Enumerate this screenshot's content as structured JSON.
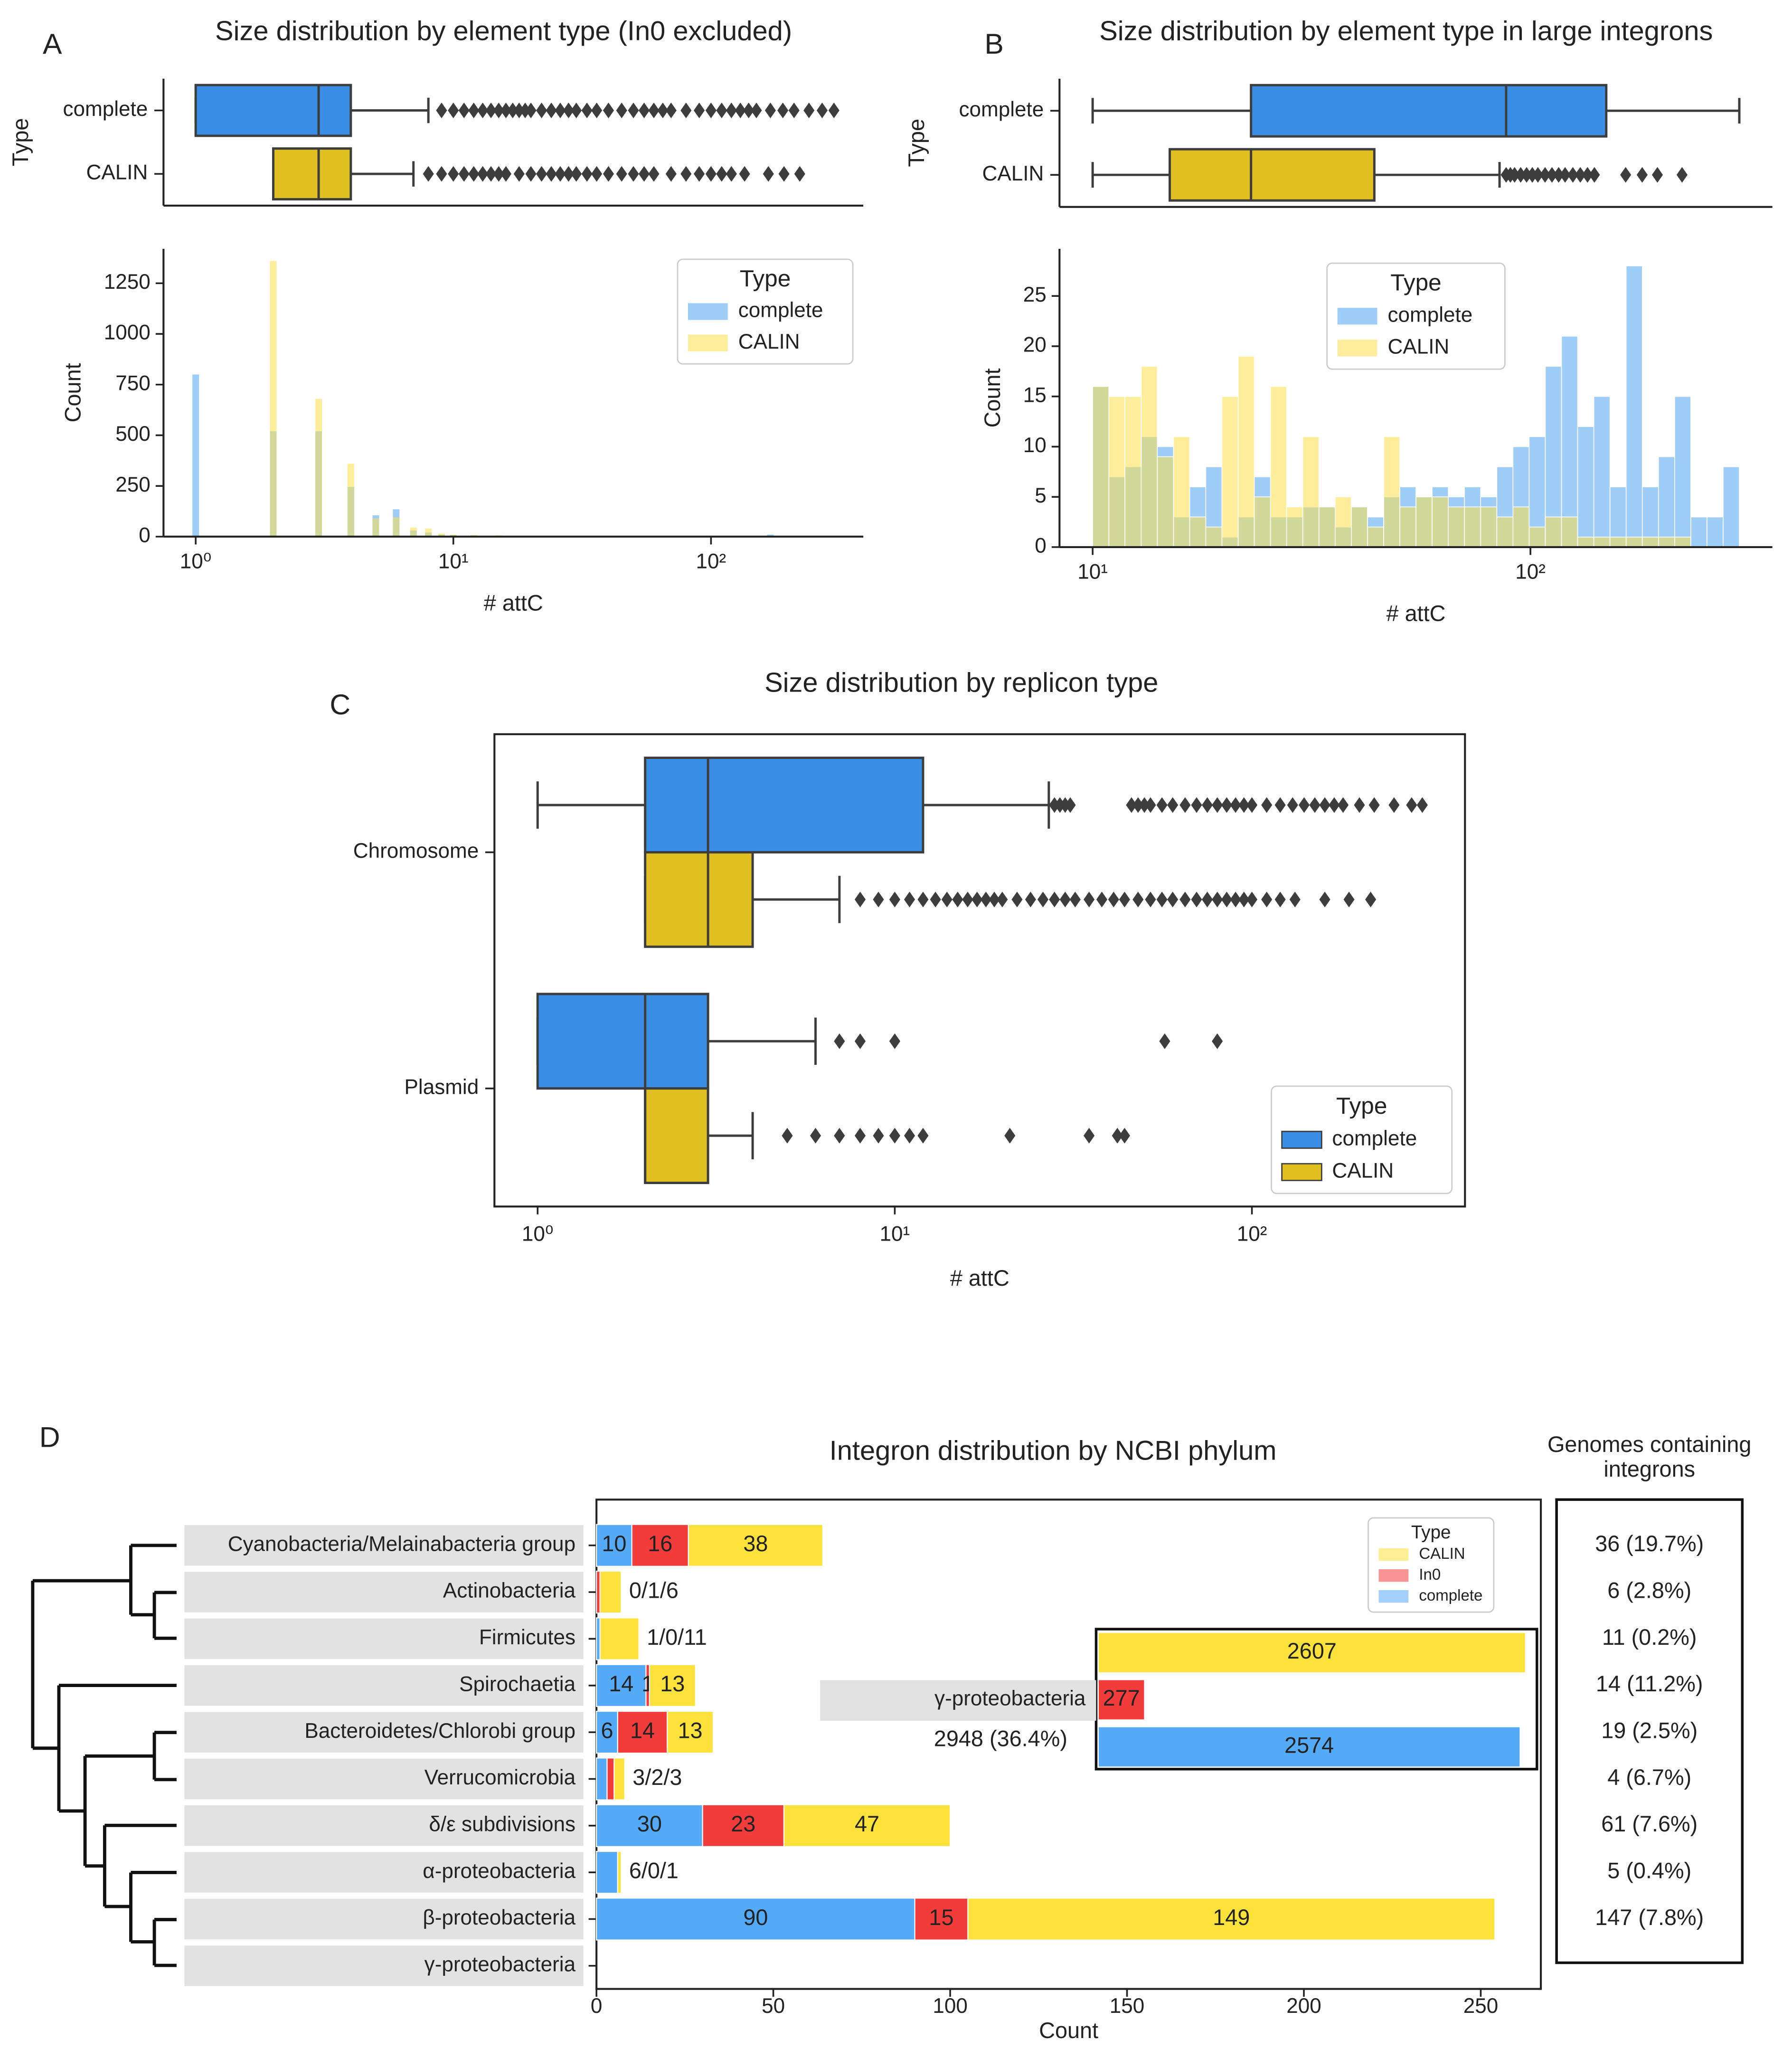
{
  "chart_data": [
    {
      "type": "box",
      "panel": "A",
      "title": "Size distribution by element type (In0 excluded)",
      "ylabel": "Type",
      "xscale": "log",
      "xlim": [
        0.75,
        390
      ],
      "categories": [
        "complete",
        "CALIN"
      ],
      "colors": [
        "#3a8ee6",
        "#e0c020"
      ],
      "boxes": [
        {
          "whislo": 1,
          "q1": 1,
          "med": 3,
          "q3": 4,
          "whishi": 8,
          "fliers": [
            9,
            10,
            11,
            12,
            13,
            14,
            15,
            16,
            17,
            18,
            19,
            20,
            22,
            24,
            26,
            28,
            30,
            33,
            36,
            40,
            45,
            50,
            55,
            60,
            65,
            70,
            80,
            90,
            100,
            110,
            120,
            130,
            140,
            150,
            170,
            190,
            210,
            240,
            270,
            300
          ]
        },
        {
          "whislo": 2,
          "q1": 2,
          "med": 3,
          "q3": 4,
          "whishi": 7,
          "fliers": [
            8,
            9,
            10,
            11,
            12,
            13,
            14,
            15,
            16,
            18,
            20,
            22,
            24,
            26,
            28,
            30,
            33,
            36,
            40,
            45,
            50,
            55,
            60,
            70,
            80,
            90,
            100,
            110,
            120,
            135,
            167,
            192,
            221
          ]
        }
      ]
    },
    {
      "type": "histogram",
      "xscale": "log",
      "xlim": [
        0.75,
        390
      ],
      "xticks": [
        {
          "value": 1,
          "label": "10⁰"
        },
        {
          "value": 10,
          "label": "10¹"
        },
        {
          "value": 100,
          "label": "10²"
        }
      ],
      "ylim": [
        0,
        1420
      ],
      "yticks": [
        0,
        250,
        500,
        750,
        1000,
        1250
      ],
      "xlabel": "# attC",
      "ylabel": "Count",
      "x": [
        1,
        2,
        3,
        4,
        5,
        6,
        7,
        8,
        9,
        10,
        12,
        15,
        20,
        30,
        100,
        120,
        170
      ],
      "series": [
        {
          "name": "complete",
          "color": "#4ea6f2",
          "values": [
            800,
            520,
            520,
            245,
            105,
            135,
            30,
            20,
            10,
            8,
            6,
            5,
            4,
            3,
            4,
            3,
            10
          ]
        },
        {
          "name": "CALIN",
          "color": "#fde04a",
          "values": [
            0,
            1360,
            680,
            360,
            90,
            95,
            45,
            40,
            15,
            10,
            8,
            6,
            5,
            3,
            2,
            2,
            2
          ]
        }
      ],
      "legend": {
        "title": "Type",
        "loc": "upper right"
      }
    },
    {
      "type": "box",
      "panel": "B",
      "title": "Size distribution by element type in large integrons",
      "ylabel": "Type",
      "xscale": "log",
      "xlim": [
        8.4,
        357
      ],
      "categories": [
        "complete",
        "CALIN"
      ],
      "colors": [
        "#3a8ee6",
        "#e0c020"
      ],
      "boxes": [
        {
          "whislo": 10,
          "q1": 23,
          "med": 88,
          "q3": 149,
          "whishi": 300,
          "fliers": []
        },
        {
          "whislo": 10,
          "q1": 15,
          "med": 23,
          "q3": 44,
          "whishi": 85,
          "fliers": [
            88,
            90,
            92,
            95,
            98,
            101,
            104,
            108,
            112,
            116,
            120,
            125,
            130,
            135,
            140,
            165,
            180,
            195,
            222
          ]
        }
      ]
    },
    {
      "type": "histogram",
      "xscale": "log",
      "xlim": [
        8.4,
        357
      ],
      "xticks": [
        {
          "value": 10,
          "label": "10¹"
        },
        {
          "value": 100,
          "label": "10²"
        }
      ],
      "ylim": [
        0,
        29.7
      ],
      "yticks": [
        0,
        5,
        10,
        15,
        20,
        25
      ],
      "xlabel": "# attC",
      "ylabel": "Count",
      "bins": [
        10,
        10.89,
        11.85,
        12.91,
        14.05,
        15.3,
        16.66,
        18.13,
        19.74,
        21.5,
        23.4,
        25.48,
        27.74,
        30.2,
        32.88,
        35.8,
        38.98,
        42.44,
        46.21,
        50.31,
        54.77,
        59.63,
        64.93,
        70.69,
        76.96,
        83.79,
        91.23,
        99.32,
        108.14,
        117.73,
        128.19,
        139.56,
        151.95,
        165.44,
        180.12,
        196.1,
        213.51,
        232.46,
        253.09,
        275.55,
        300
      ],
      "series": [
        {
          "name": "complete",
          "color": "#4ea6f2",
          "values": [
            16,
            7,
            8,
            11,
            10,
            3,
            6,
            8,
            1,
            3,
            7,
            3,
            3,
            4,
            4,
            2,
            4,
            3,
            5,
            6,
            5,
            6,
            5,
            6,
            5,
            8,
            10,
            11,
            18,
            21,
            12,
            15,
            6,
            28,
            6,
            9,
            15,
            3,
            3,
            8
          ]
        },
        {
          "name": "CALIN",
          "color": "#fde04a",
          "values": [
            16,
            15,
            15,
            18,
            9,
            11,
            3,
            2,
            15,
            19,
            5,
            16,
            4,
            11,
            4,
            5,
            4,
            2,
            11,
            4,
            5,
            5,
            4,
            4,
            4,
            3,
            4,
            2,
            3,
            3,
            1,
            1,
            1,
            1,
            1,
            1,
            1,
            0,
            0,
            0
          ]
        }
      ],
      "legend": {
        "title": "Type",
        "loc": "upper center"
      }
    },
    {
      "type": "box",
      "panel": "C",
      "title": "Size distribution by replicon type",
      "xlabel": "# attC",
      "xscale": "log",
      "xlim": [
        0.757,
        395
      ],
      "frame": true,
      "xticks": [
        {
          "value": 1,
          "label": "10⁰"
        },
        {
          "value": 10,
          "label": "10¹"
        },
        {
          "value": 100,
          "label": "10²"
        }
      ],
      "categories": [
        "Chromosome",
        "Plasmid"
      ],
      "series": [
        {
          "name": "complete",
          "color": "#3a8ee6",
          "boxes": [
            {
              "whislo": 1,
              "q1": 2,
              "med": 3,
              "q3": 12,
              "whishi": 27,
              "fliers": [
                28,
                29,
                30,
                31,
                46,
                48,
                50,
                52,
                56,
                60,
                65,
                70,
                75,
                80,
                85,
                90,
                95,
                100,
                110,
                120,
                130,
                140,
                150,
                160,
                170,
                180,
                200,
                220,
                250,
                280,
                300
              ]
            },
            {
              "whislo": 1,
              "q1": 1,
              "med": 2,
              "q3": 3,
              "whishi": 6,
              "fliers": [
                7,
                8,
                10,
                57,
                80
              ]
            }
          ]
        },
        {
          "name": "CALIN",
          "color": "#e0c020",
          "boxes": [
            {
              "whislo": 2,
              "q1": 2,
              "med": 3,
              "q3": 4,
              "whishi": 7,
              "fliers": [
                8,
                9,
                10,
                11,
                12,
                13,
                14,
                15,
                16,
                17,
                18,
                19,
                20,
                22,
                24,
                26,
                28,
                30,
                32,
                35,
                38,
                41,
                44,
                48,
                52,
                56,
                60,
                65,
                70,
                75,
                80,
                85,
                90,
                95,
                100,
                110,
                120,
                132,
                160,
                187,
                215
              ]
            },
            {
              "whislo": 2,
              "q1": 2,
              "med": 2,
              "q3": 3,
              "whishi": 4,
              "fliers": [
                5,
                6,
                7,
                8,
                9,
                10,
                11,
                12,
                21,
                35,
                42,
                44
              ]
            }
          ]
        }
      ],
      "legend": {
        "title": "Type",
        "loc": "lower right"
      }
    },
    {
      "type": "stacked_barh",
      "panel": "D",
      "title": "Integron distribution by NCBI phylum",
      "xlabel": "Count",
      "xlim": [
        0,
        267
      ],
      "xticks": [
        0,
        50,
        100,
        150,
        200,
        250
      ],
      "categories": [
        "Cyanobacteria/Melainabacteria group",
        "Actinobacteria",
        "Firmicutes",
        "Spirochaetia",
        "Bacteroidetes/Chlorobi group",
        "Verrucomicrobia",
        "δ/ε subdivisions",
        "α-proteobacteria",
        "β-proteobacteria",
        "γ-proteobacteria"
      ],
      "series": [
        {
          "name": "complete",
          "color": "#55aaf8",
          "values": [
            10,
            0,
            1,
            14,
            6,
            3,
            30,
            6,
            90,
            null
          ]
        },
        {
          "name": "In0",
          "color": "#f23c3c",
          "values": [
            16,
            1,
            0,
            1,
            14,
            2,
            23,
            0,
            15,
            null
          ]
        },
        {
          "name": "CALIN",
          "color": "#fde23c",
          "values": [
            38,
            6,
            11,
            13,
            13,
            3,
            47,
            1,
            149,
            null
          ]
        }
      ],
      "notes": [
        null,
        "0/1/6",
        "1/0/11",
        null,
        null,
        "3/2/3",
        null,
        "6/0/1",
        null,
        null
      ],
      "legend": {
        "title": "Type",
        "loc": "upper right"
      },
      "inset": {
        "category": "γ-proteobacteria",
        "note": "2948 (36.4%)",
        "xlim": [
          0,
          2680
        ],
        "values": [
          2574,
          277,
          2607
        ]
      },
      "genomes": {
        "title": [
          "Genomes containing",
          "integrons"
        ],
        "values": [
          "36 (19.7%)",
          "6 (2.8%)",
          "11 (0.2%)",
          "14 (11.2%)",
          "19 (2.5%)",
          "4 (6.7%)",
          "61 (7.6%)",
          "5 (0.4%)",
          "147 (7.8%)"
        ]
      }
    }
  ]
}
